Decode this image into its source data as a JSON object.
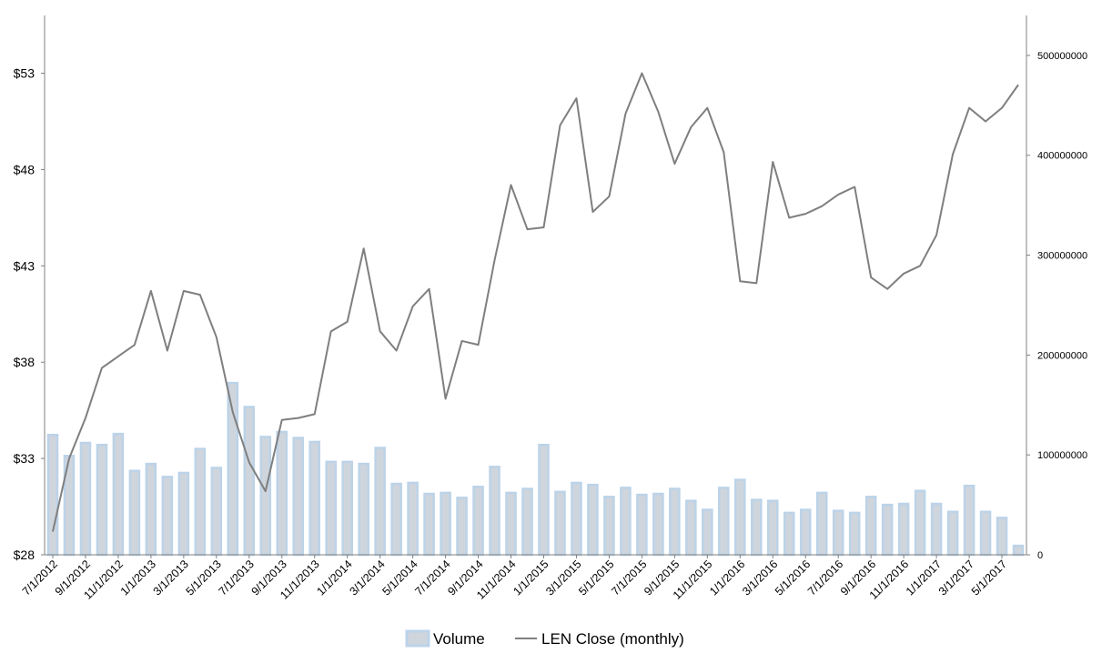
{
  "chart_data": {
    "type": "bar+line",
    "title": "",
    "x": [
      "7/1/2012",
      "8/1/2012",
      "9/1/2012",
      "10/1/2012",
      "11/1/2012",
      "12/1/2012",
      "1/1/2013",
      "2/1/2013",
      "3/1/2013",
      "4/1/2013",
      "5/1/2013",
      "6/1/2013",
      "7/1/2013",
      "8/1/2013",
      "9/1/2013",
      "10/1/2013",
      "11/1/2013",
      "12/1/2013",
      "1/1/2014",
      "2/1/2014",
      "3/1/2014",
      "4/1/2014",
      "5/1/2014",
      "6/1/2014",
      "7/1/2014",
      "8/1/2014",
      "9/1/2014",
      "10/1/2014",
      "11/1/2014",
      "12/1/2014",
      "1/1/2015",
      "2/1/2015",
      "3/1/2015",
      "4/1/2015",
      "5/1/2015",
      "6/1/2015",
      "7/1/2015",
      "8/1/2015",
      "9/1/2015",
      "10/1/2015",
      "11/1/2015",
      "12/1/2015",
      "1/1/2016",
      "2/1/2016",
      "3/1/2016",
      "4/1/2016",
      "5/1/2016",
      "6/1/2016",
      "7/1/2016",
      "8/1/2016",
      "9/1/2016",
      "10/1/2016",
      "11/1/2016",
      "12/1/2016",
      "1/1/2017",
      "2/1/2017",
      "3/1/2017",
      "4/1/2017",
      "5/1/2017",
      "6/1/2017"
    ],
    "x_tick_labels": [
      "7/1/2012",
      "9/1/2012",
      "11/1/2012",
      "1/1/2013",
      "3/1/2013",
      "5/1/2013",
      "7/1/2013",
      "9/1/2013",
      "11/1/2013",
      "1/1/2014",
      "3/1/2014",
      "5/1/2014",
      "7/1/2014",
      "9/1/2014",
      "11/1/2014",
      "1/1/2015",
      "3/1/2015",
      "5/1/2015",
      "7/1/2015",
      "9/1/2015",
      "11/1/2015",
      "1/1/2016",
      "3/1/2016",
      "5/1/2016",
      "7/1/2016",
      "9/1/2016",
      "11/1/2016",
      "1/1/2017",
      "3/1/2017",
      "5/1/2017"
    ],
    "series": [
      {
        "name": "Volume",
        "type": "bar",
        "axis": "right",
        "values": [
          120000000,
          99000000,
          112000000,
          110000000,
          121000000,
          84000000,
          91000000,
          78000000,
          82000000,
          106000000,
          87000000,
          172000000,
          148000000,
          118000000,
          123000000,
          117000000,
          113000000,
          93000000,
          93000000,
          91000000,
          107000000,
          71000000,
          72000000,
          61000000,
          62000000,
          57000000,
          68000000,
          88000000,
          62000000,
          66000000,
          110000000,
          63000000,
          72000000,
          70000000,
          58000000,
          67000000,
          60000000,
          61000000,
          66000000,
          54000000,
          45000000,
          67000000,
          75000000,
          55000000,
          54000000,
          42000000,
          45000000,
          62000000,
          44000000,
          42000000,
          58000000,
          50000000,
          51000000,
          64000000,
          51000000,
          43000000,
          69000000,
          43000000,
          37000000,
          9000000
        ]
      },
      {
        "name": "LEN Close (monthly)",
        "type": "line",
        "axis": "left",
        "values": [
          29.2,
          33.0,
          35.1,
          37.7,
          38.3,
          38.9,
          41.7,
          38.6,
          41.7,
          41.5,
          39.3,
          35.4,
          32.8,
          31.3,
          35.0,
          35.1,
          35.3,
          39.6,
          40.1,
          43.9,
          39.6,
          38.6,
          40.9,
          41.8,
          36.1,
          39.1,
          38.9,
          43.3,
          47.2,
          44.9,
          45.0,
          50.3,
          51.7,
          45.8,
          46.6,
          50.9,
          53.0,
          51.0,
          48.3,
          50.2,
          51.2,
          48.9,
          42.2,
          42.1,
          48.4,
          45.5,
          45.7,
          46.1,
          46.7,
          47.1,
          42.4,
          41.8,
          42.6,
          43.0,
          44.6,
          48.8,
          51.2,
          50.5,
          51.2,
          52.4
        ]
      }
    ],
    "y_left": {
      "ylim": [
        28,
        56
      ],
      "ticks": [
        28,
        33,
        38,
        43,
        48,
        53
      ],
      "tick_labels": [
        "$28",
        "$33",
        "$38",
        "$43",
        "$48",
        "$53"
      ]
    },
    "y_right": {
      "ylim": [
        0,
        540000000
      ],
      "ticks": [
        0,
        100000000,
        200000000,
        300000000,
        400000000,
        500000000
      ],
      "tick_labels": [
        "0",
        "100000000",
        "200000000",
        "300000000",
        "400000000",
        "500000000"
      ]
    },
    "grid": false,
    "legend_position": "bottom",
    "colors": {
      "bar_fill": "#cfd5dd",
      "bar_stroke": "#bcd3e8",
      "line": "#7f7f7f",
      "axis": "#808080"
    }
  }
}
